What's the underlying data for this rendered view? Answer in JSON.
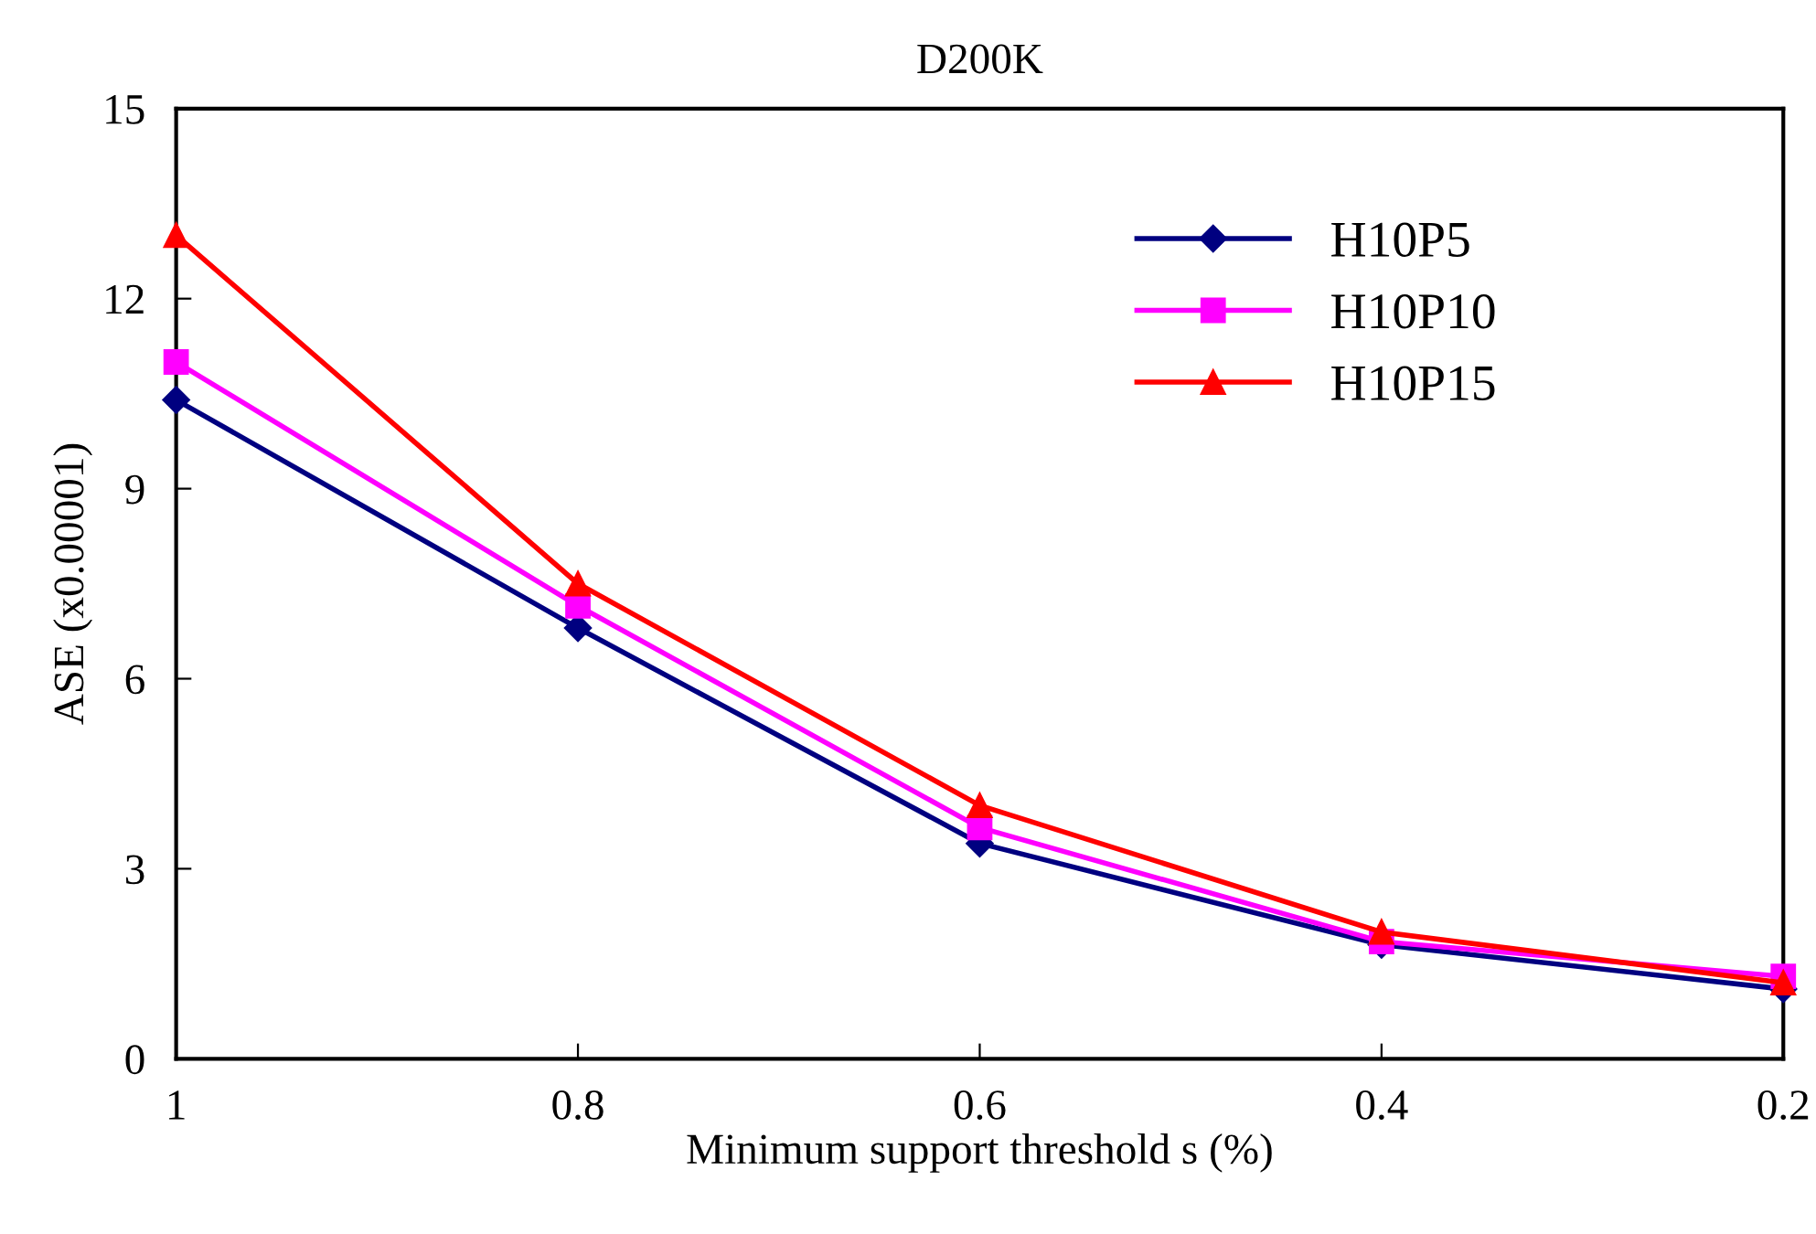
{
  "chart_data": {
    "type": "line",
    "title": "D200K",
    "xlabel": "Minimum support threshold s (%)",
    "ylabel": "ASE (x0.00001)",
    "categories": [
      "1",
      "0.8",
      "0.6",
      "0.4",
      "0.2"
    ],
    "series": [
      {
        "name": "H10P5",
        "color": "#000080",
        "marker": "diamond",
        "values": [
          10.4,
          6.8,
          3.4,
          1.8,
          1.1
        ]
      },
      {
        "name": "H10P10",
        "color": "#ff00ff",
        "marker": "square",
        "values": [
          11.0,
          7.15,
          3.65,
          1.85,
          1.3
        ]
      },
      {
        "name": "H10P15",
        "color": "#ff0000",
        "marker": "triangle",
        "values": [
          13.0,
          7.5,
          4.0,
          2.0,
          1.2
        ]
      }
    ],
    "ylim": [
      0,
      15
    ],
    "yticks": [
      0,
      3,
      6,
      9,
      12,
      15
    ],
    "grid": false,
    "legend": "top right"
  }
}
